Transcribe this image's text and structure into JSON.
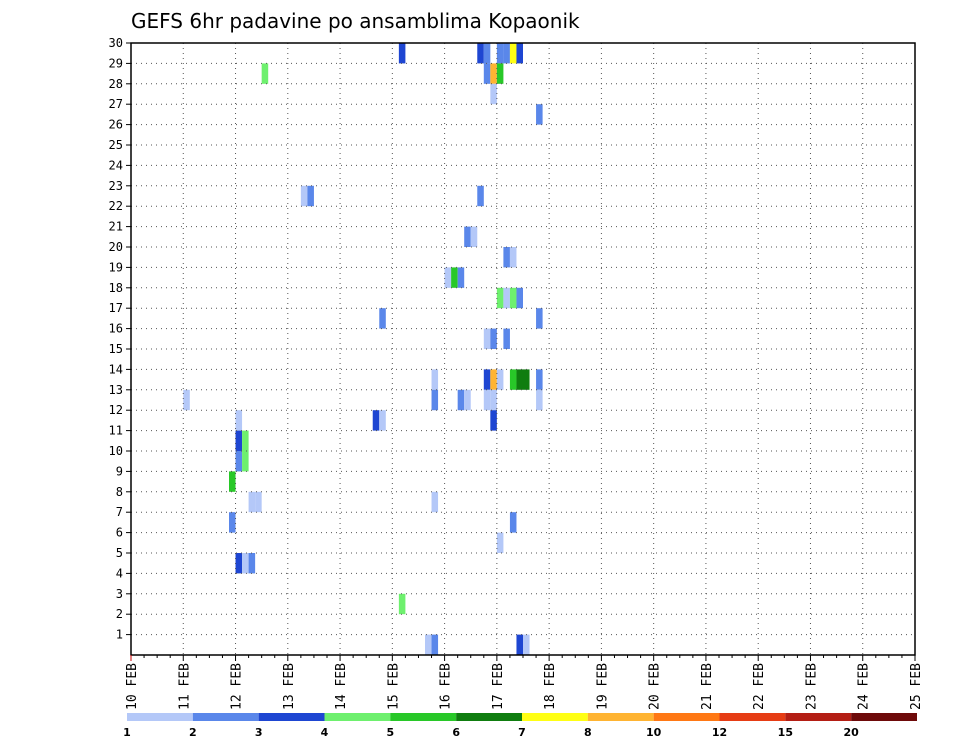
{
  "chart_data": {
    "type": "heatmap",
    "title": "GEFS 6hr padavine po ansamblima Kopaonik",
    "x_tick_labels": [
      "10 FEB",
      "11 FEB",
      "12 FEB",
      "13 FEB",
      "14 FEB",
      "15 FEB",
      "16 FEB",
      "17 FEB",
      "18 FEB",
      "19 FEB",
      "20 FEB",
      "21 FEB",
      "22 FEB",
      "23 FEB",
      "24 FEB",
      "25 FEB"
    ],
    "x_range": [
      0,
      60
    ],
    "y_tick_labels": [
      "1",
      "2",
      "3",
      "4",
      "5",
      "6",
      "7",
      "8",
      "9",
      "10",
      "11",
      "12",
      "13",
      "14",
      "15",
      "16",
      "17",
      "18",
      "19",
      "20",
      "21",
      "22",
      "23",
      "24",
      "25",
      "26",
      "27",
      "28",
      "29",
      "30"
    ],
    "y_range": [
      0,
      30
    ],
    "grid": true,
    "colorbar": {
      "labels": [
        "1",
        "2",
        "3",
        "4",
        "5",
        "6",
        "7",
        "8",
        "10",
        "12",
        "15",
        "20"
      ],
      "colors": [
        "#b4c8f8",
        "#5a87ea",
        "#1e46d2",
        "#6ef06e",
        "#28c828",
        "#0f7d0f",
        "#ffff14",
        "#ffb432",
        "#ff7814",
        "#e63c14",
        "#b41e14",
        "#6e0a0a"
      ]
    },
    "cells": [
      {
        "t": 20.5,
        "m": 29,
        "c": 3
      },
      {
        "t": 26.5,
        "m": 29,
        "c": 3
      },
      {
        "t": 27,
        "m": 29,
        "c": 2
      },
      {
        "t": 28,
        "m": 29,
        "c": 2
      },
      {
        "t": 28.5,
        "m": 29,
        "c": 2
      },
      {
        "t": 29,
        "m": 29,
        "c": 7
      },
      {
        "t": 29.5,
        "m": 29,
        "c": 3
      },
      {
        "t": 10,
        "m": 28,
        "c": 4
      },
      {
        "t": 27,
        "m": 28,
        "c": 2
      },
      {
        "t": 27.5,
        "m": 28,
        "c": 8
      },
      {
        "t": 28,
        "m": 28,
        "c": 5
      },
      {
        "t": 27.5,
        "m": 27,
        "c": 1
      },
      {
        "t": 31,
        "m": 26,
        "c": 2
      },
      {
        "t": 13,
        "m": 22,
        "c": 1
      },
      {
        "t": 13.5,
        "m": 22,
        "c": 2
      },
      {
        "t": 26.5,
        "m": 22,
        "c": 2
      },
      {
        "t": 25.5,
        "m": 20,
        "c": 2
      },
      {
        "t": 26,
        "m": 20,
        "c": 1
      },
      {
        "t": 28.5,
        "m": 19,
        "c": 2
      },
      {
        "t": 29,
        "m": 19,
        "c": 1
      },
      {
        "t": 24,
        "m": 18,
        "c": 1
      },
      {
        "t": 24.5,
        "m": 18,
        "c": 5
      },
      {
        "t": 25,
        "m": 18,
        "c": 2
      },
      {
        "t": 28,
        "m": 17,
        "c": 4
      },
      {
        "t": 28.5,
        "m": 17,
        "c": 1
      },
      {
        "t": 29,
        "m": 17,
        "c": 4
      },
      {
        "t": 29.5,
        "m": 17,
        "c": 2
      },
      {
        "t": 19,
        "m": 16,
        "c": 2
      },
      {
        "t": 31,
        "m": 16,
        "c": 2
      },
      {
        "t": 27,
        "m": 15,
        "c": 1
      },
      {
        "t": 27.5,
        "m": 15,
        "c": 2
      },
      {
        "t": 28.5,
        "m": 15,
        "c": 2
      },
      {
        "t": 23,
        "m": 13,
        "c": 1
      },
      {
        "t": 27,
        "m": 13,
        "c": 3
      },
      {
        "t": 27.5,
        "m": 13,
        "c": 8
      },
      {
        "t": 28,
        "m": 13,
        "c": 1
      },
      {
        "t": 29,
        "m": 13,
        "c": 5
      },
      {
        "t": 29.5,
        "m": 13,
        "c": 6
      },
      {
        "t": 30,
        "m": 13,
        "c": 6
      },
      {
        "t": 31,
        "m": 13,
        "c": 2
      },
      {
        "t": 4,
        "m": 12,
        "c": 1
      },
      {
        "t": 23,
        "m": 12,
        "c": 2
      },
      {
        "t": 25,
        "m": 12,
        "c": 2
      },
      {
        "t": 25.5,
        "m": 12,
        "c": 1
      },
      {
        "t": 27,
        "m": 12,
        "c": 1
      },
      {
        "t": 27.5,
        "m": 12,
        "c": 1
      },
      {
        "t": 31,
        "m": 12,
        "c": 1
      },
      {
        "t": 8,
        "m": 11,
        "c": 1
      },
      {
        "t": 18.5,
        "m": 11,
        "c": 3
      },
      {
        "t": 19,
        "m": 11,
        "c": 1
      },
      {
        "t": 27.5,
        "m": 11,
        "c": 3
      },
      {
        "t": 8,
        "m": 10,
        "c": 3
      },
      {
        "t": 8.5,
        "m": 10,
        "c": 4
      },
      {
        "t": 8,
        "m": 9,
        "c": 2
      },
      {
        "t": 8.5,
        "m": 9,
        "c": 4
      },
      {
        "t": 7.5,
        "m": 8,
        "c": 5
      },
      {
        "t": 9,
        "m": 7,
        "c": 1
      },
      {
        "t": 9.5,
        "m": 7,
        "c": 1
      },
      {
        "t": 23,
        "m": 7,
        "c": 1
      },
      {
        "t": 7.5,
        "m": 6,
        "c": 2
      },
      {
        "t": 29,
        "m": 6,
        "c": 2
      },
      {
        "t": 28,
        "m": 5,
        "c": 1
      },
      {
        "t": 8,
        "m": 4,
        "c": 3
      },
      {
        "t": 8.5,
        "m": 4,
        "c": 1
      },
      {
        "t": 9,
        "m": 4,
        "c": 2
      },
      {
        "t": 20.5,
        "m": 2,
        "c": 4
      },
      {
        "t": 22.5,
        "m": 0,
        "c": 1
      },
      {
        "t": 23,
        "m": 0,
        "c": 2
      },
      {
        "t": 29.5,
        "m": 0,
        "c": 3
      },
      {
        "t": 30,
        "m": 0,
        "c": 1
      }
    ]
  }
}
